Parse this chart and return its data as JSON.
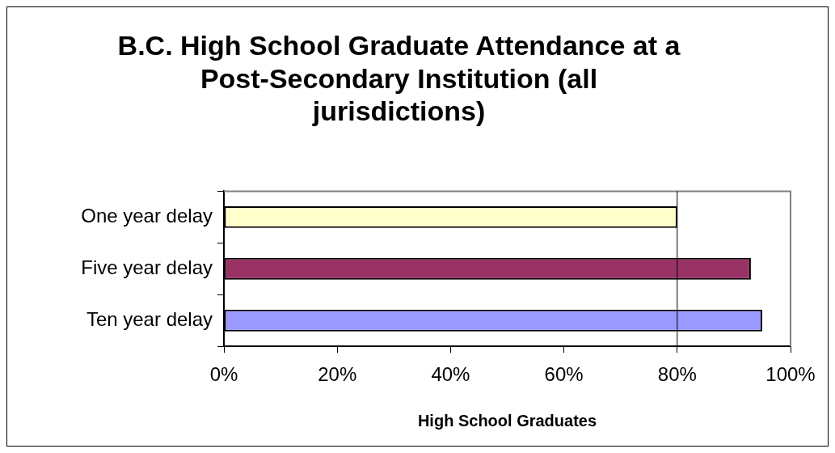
{
  "chart_data": {
    "type": "bar",
    "orientation": "horizontal",
    "title": "B.C. High School Graduate Attendance at a Post-Secondary Institution (all jurisdictions)",
    "xlabel": "High School Graduates",
    "categories": [
      "One year delay",
      "Five year delay",
      "Ten year delay"
    ],
    "values": [
      80,
      93,
      95
    ],
    "colors": [
      "#ffffcc",
      "#993366",
      "#9999ff"
    ],
    "xlim": [
      0,
      100
    ],
    "xticks": [
      {
        "value": 0,
        "label": "0%"
      },
      {
        "value": 20,
        "label": "20%"
      },
      {
        "value": 40,
        "label": "40%"
      },
      {
        "value": 60,
        "label": "60%"
      },
      {
        "value": 80,
        "label": "80%"
      },
      {
        "value": 100,
        "label": "100%"
      }
    ],
    "ref_lines": [
      {
        "axis": "x",
        "value": 80,
        "color": "#000000"
      }
    ],
    "grid": false,
    "legend": false
  }
}
